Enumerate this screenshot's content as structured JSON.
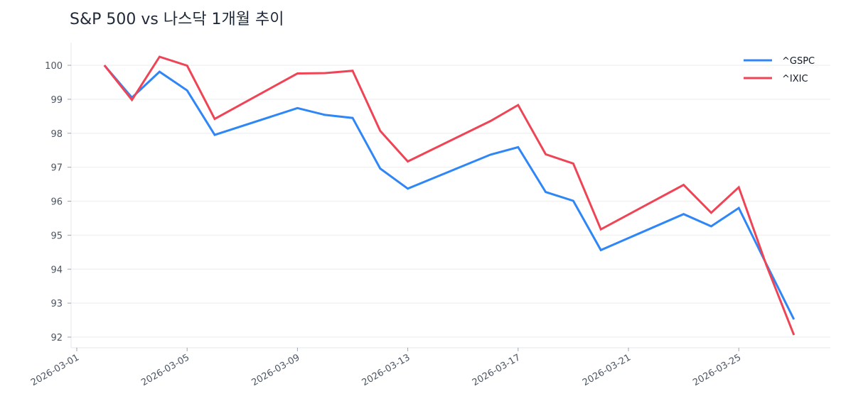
{
  "chart_data": {
    "type": "line",
    "title": "S&P 500 vs 나스닥 1개월 추이",
    "xlabel": "",
    "ylabel": "",
    "x": [
      "2026-03-02",
      "2026-03-03",
      "2026-03-04",
      "2026-03-05",
      "2026-03-06",
      "2026-03-09",
      "2026-03-10",
      "2026-03-11",
      "2026-03-12",
      "2026-03-13",
      "2026-03-16",
      "2026-03-17",
      "2026-03-18",
      "2026-03-19",
      "2026-03-20",
      "2026-03-23",
      "2026-03-24",
      "2026-03-25",
      "2026-03-26",
      "2026-03-27"
    ],
    "series": [
      {
        "name": "^GSPC",
        "color": "#2f86f6",
        "values": [
          100,
          99.05,
          99.81,
          99.26,
          97.95,
          98.74,
          98.54,
          98.45,
          96.96,
          96.37,
          97.37,
          97.59,
          96.27,
          96.01,
          94.56,
          95.62,
          95.26,
          95.8,
          94.15,
          92.52
        ]
      },
      {
        "name": "^IXIC",
        "color": "#ef4455",
        "values": [
          100,
          98.98,
          100.25,
          99.99,
          98.42,
          99.76,
          99.77,
          99.84,
          98.07,
          97.17,
          98.36,
          98.83,
          97.38,
          97.11,
          95.17,
          96.48,
          95.66,
          96.41,
          94.12,
          92.06
        ]
      }
    ],
    "xlim": [
      "2026-03-01",
      "2026-03-28"
    ],
    "ylim": [
      91.7,
      100.7
    ],
    "yticks": [
      "92",
      "93",
      "94",
      "95",
      "96",
      "97",
      "98",
      "99",
      "100"
    ],
    "xticks": [
      "2026-03-01",
      "2026-03-05",
      "2026-03-09",
      "2026-03-13",
      "2026-03-17",
      "2026-03-21",
      "2026-03-25"
    ],
    "grid": "horizontal",
    "legend": "top-right"
  }
}
